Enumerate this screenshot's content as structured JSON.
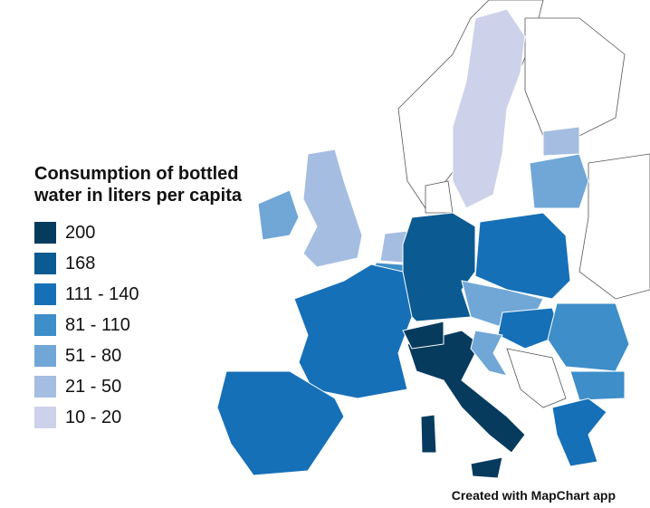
{
  "title": "Consumption of bottled water in liters per capita",
  "legend": {
    "items": [
      {
        "label": "200",
        "color": "#073b5e"
      },
      {
        "label": "168",
        "color": "#0b5a92"
      },
      {
        "label": "111 - 140",
        "color": "#1670b8"
      },
      {
        "label": "81 - 110",
        "color": "#3d8ec9"
      },
      {
        "label": "51 - 80",
        "color": "#70a7d6"
      },
      {
        "label": "21 - 50",
        "color": "#a5bde1"
      },
      {
        "label": "10 - 20",
        "color": "#cdd1e9"
      }
    ]
  },
  "credit": "Created with MapChart app"
}
